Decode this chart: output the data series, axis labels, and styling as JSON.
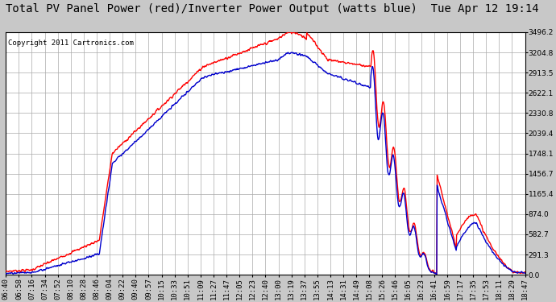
{
  "title": "Total PV Panel Power (red)/Inverter Power Output (watts blue)  Tue Apr 12 19:14",
  "copyright": "Copyright 2011 Cartronics.com",
  "background_color": "#c8c8c8",
  "plot_bg_color": "#ffffff",
  "grid_color": "#aaaaaa",
  "red_color": "#ff0000",
  "blue_color": "#0000cc",
  "ymax": 3496.2,
  "ymin": 0.0,
  "yticks": [
    0.0,
    291.3,
    582.7,
    874.0,
    1165.4,
    1456.7,
    1748.1,
    2039.4,
    2330.8,
    2622.1,
    2913.5,
    3204.8,
    3496.2
  ],
  "x_labels": [
    "06:40",
    "06:58",
    "07:16",
    "07:34",
    "07:52",
    "08:10",
    "08:28",
    "08:46",
    "09:04",
    "09:22",
    "09:40",
    "09:57",
    "10:15",
    "10:33",
    "10:51",
    "11:09",
    "11:27",
    "11:47",
    "12:05",
    "12:23",
    "12:40",
    "13:00",
    "13:19",
    "13:37",
    "13:55",
    "14:13",
    "14:31",
    "14:49",
    "15:08",
    "15:26",
    "15:46",
    "16:05",
    "16:23",
    "16:41",
    "16:59",
    "17:17",
    "17:35",
    "17:53",
    "18:11",
    "18:29",
    "18:47"
  ],
  "title_fontsize": 10,
  "tick_fontsize": 6.5,
  "copyright_fontsize": 6.5,
  "line_width": 1.0
}
